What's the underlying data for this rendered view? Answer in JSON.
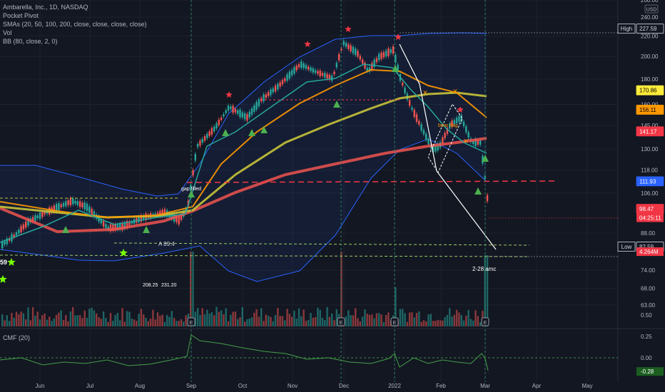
{
  "legend": {
    "title": "Ambarella, Inc., 1D, NASDAQ",
    "pocket": "Pocket Pivot",
    "smas": "SMAs (20, 50, 100, 200, close, close, close, close)",
    "vol": "Vol",
    "bb": "BB (80, close, 2, 0)"
  },
  "currency": "USD",
  "cmf_title": "CMF (20)",
  "price_axis": {
    "min": 57,
    "max": 260,
    "ticks": [
      63,
      68,
      74,
      82.59,
      88,
      98.47,
      106,
      118,
      130,
      145,
      160,
      180,
      200,
      220,
      240,
      260
    ],
    "labels": [
      "63.00",
      "68.00",
      "74.00",
      "",
      "88.00",
      "",
      "106.00",
      "118.00",
      "130.00",
      "145.00",
      "160.00",
      "180.00",
      "200.00",
      "220.00",
      "240.00",
      "260.00"
    ]
  },
  "price_tags": [
    {
      "value": 227.59,
      "text": "227.59",
      "bg": "#131722",
      "fg": "#d1d4dc",
      "border": "#d1d4dc"
    },
    {
      "value": 170.86,
      "text": "170.86",
      "bg": "#ffeb3b",
      "fg": "#000000",
      "border": "#ffeb3b"
    },
    {
      "value": 156.11,
      "text": "156.11",
      "bg": "#ff9800",
      "fg": "#000000",
      "border": "#ff9800"
    },
    {
      "value": 141.17,
      "text": "141.17",
      "bg": "#f23645",
      "fg": "#ffffff",
      "border": "#f23645"
    },
    {
      "value": 111.93,
      "text": "111.93",
      "bg": "#2962ff",
      "fg": "#ffffff",
      "border": "#2962ff"
    },
    {
      "value": 98.47,
      "text": "98.47",
      "bg": "#f23645",
      "fg": "#ffffff",
      "border": "#f23645"
    },
    {
      "value": 82.59,
      "text": "82.59",
      "bg": "#131722",
      "fg": "#d1d4dc",
      "border": "#d1d4dc"
    }
  ],
  "countdown": "04:25:11",
  "volume_tag": "4.264M",
  "high_label": "High",
  "low_label": "Low",
  "cmf_axis": {
    "ticks": [
      0.5,
      0.25,
      0,
      -0.25
    ],
    "labels": [
      "0.50",
      "0.25",
      "0.00",
      ""
    ]
  },
  "cmf_tag": "-0.28",
  "x_axis": {
    "labels": [
      "Jun",
      "Jul",
      "Aug",
      "Sep",
      "Oct",
      "Nov",
      "Dec",
      "2022",
      "Feb",
      "Mar",
      "Apr",
      "May"
    ]
  },
  "annotations": {
    "gap_filled": "gap filled",
    "a894": "A 89.4",
    "n20825": "208.25",
    "n23120": "231.20",
    "bear_flag": "bear flag",
    "amc": "2-28 amc",
    "left_value": "59"
  },
  "colors": {
    "bg": "#131722",
    "grid": "#1e222d",
    "up": "#26a69a",
    "down": "#ef5350",
    "sma20": "#26a69a",
    "sma50": "#ff9800",
    "sma100": "#c6c33a",
    "sma200": "#ef5350",
    "bb": "#2962ff"
  },
  "chart_data": {
    "type": "line",
    "title": "Ambarella, Inc., 1D, NASDAQ",
    "ylim": [
      57,
      260
    ],
    "x": [
      "Jun",
      "Jul",
      "Aug",
      "Sep",
      "Oct",
      "Nov",
      "Dec",
      "2022",
      "Feb",
      "Mar"
    ],
    "series": [
      {
        "name": "",
        "values": [
          95,
          102,
          97,
          100,
          150,
          172,
          200,
          200,
          150,
          98.47
        ]
      }
    ],
    "horizontal_levels": [
      227.59,
      118,
      89.4,
      82.59
    ],
    "high": 227.59,
    "low": 82.59,
    "cmf_last": -0.28
  }
}
